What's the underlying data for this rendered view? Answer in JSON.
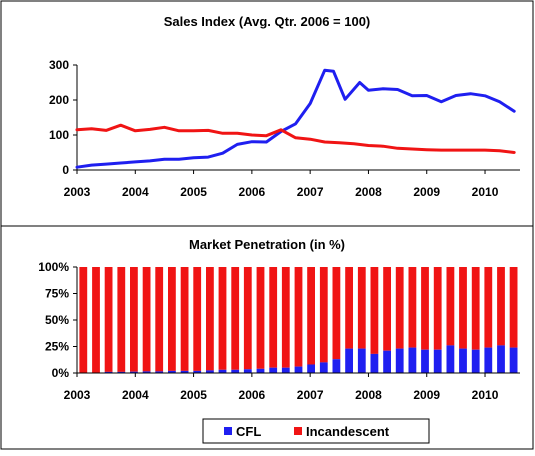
{
  "colors": {
    "cfl": "#1f1ff0",
    "incandescent": "#f01414",
    "frame": "#000000"
  },
  "chart_data": [
    {
      "type": "line",
      "title": "Sales Index (Avg. Qtr. 2006 = 100)",
      "x_range": [
        2003,
        2010.6
      ],
      "ylim": [
        0,
        300
      ],
      "yticks": [
        "0",
        "100",
        "200",
        "300"
      ],
      "xticks": [
        "2003",
        "2004",
        "2005",
        "2006",
        "2007",
        "2008",
        "2009",
        "2010"
      ],
      "grid": false,
      "series": [
        {
          "name": "CFL",
          "x": [
            2003.0,
            2003.25,
            2003.5,
            2003.75,
            2004.0,
            2004.25,
            2004.5,
            2004.75,
            2005.0,
            2005.25,
            2005.5,
            2005.75,
            2006.0,
            2006.25,
            2006.5,
            2006.75,
            2007.0,
            2007.25,
            2007.4,
            2007.6,
            2007.85,
            2008.0,
            2008.25,
            2008.5,
            2008.75,
            2009.0,
            2009.25,
            2009.5,
            2009.75,
            2010.0,
            2010.25,
            2010.5
          ],
          "values": [
            8,
            14,
            17,
            20,
            23,
            26,
            31,
            31,
            35,
            37,
            48,
            73,
            81,
            80,
            110,
            132,
            190,
            285,
            282,
            202,
            250,
            228,
            232,
            230,
            212,
            213,
            195,
            213,
            218,
            212,
            195,
            168
          ]
        },
        {
          "name": "Incandescent",
          "x": [
            2003.0,
            2003.25,
            2003.5,
            2003.75,
            2004.0,
            2004.25,
            2004.5,
            2004.75,
            2005.0,
            2005.25,
            2005.5,
            2005.75,
            2006.0,
            2006.25,
            2006.5,
            2006.75,
            2007.0,
            2007.25,
            2007.5,
            2007.75,
            2008.0,
            2008.25,
            2008.5,
            2008.75,
            2009.0,
            2009.25,
            2009.5,
            2009.75,
            2010.0,
            2010.25,
            2010.5
          ],
          "values": [
            115,
            118,
            113,
            128,
            112,
            116,
            122,
            112,
            112,
            113,
            105,
            105,
            100,
            98,
            115,
            92,
            88,
            80,
            78,
            75,
            70,
            68,
            62,
            60,
            58,
            57,
            57,
            57,
            57,
            55,
            50
          ]
        }
      ]
    },
    {
      "type": "bar",
      "stacked": true,
      "title": "Market Penetration (in %)",
      "ylim": [
        0,
        100
      ],
      "yticks": [
        "0%",
        "25%",
        "50%",
        "75%",
        "100%"
      ],
      "xticks": [
        "2003",
        "2004",
        "2005",
        "2006",
        "2007",
        "2008",
        "2009",
        "2010"
      ],
      "legend_position": "bottom",
      "series": [
        {
          "name": "CFL",
          "values": [
            0.5,
            0.5,
            1,
            1,
            1.2,
            1.5,
            1.5,
            2,
            2,
            2,
            2.5,
            3,
            3,
            3.5,
            4,
            5,
            5,
            6,
            8,
            10,
            13,
            23,
            23,
            18,
            21,
            23,
            24,
            22,
            22,
            26,
            23,
            22,
            24,
            26,
            24
          ]
        },
        {
          "name": "Incandescent"
        }
      ]
    }
  ]
}
